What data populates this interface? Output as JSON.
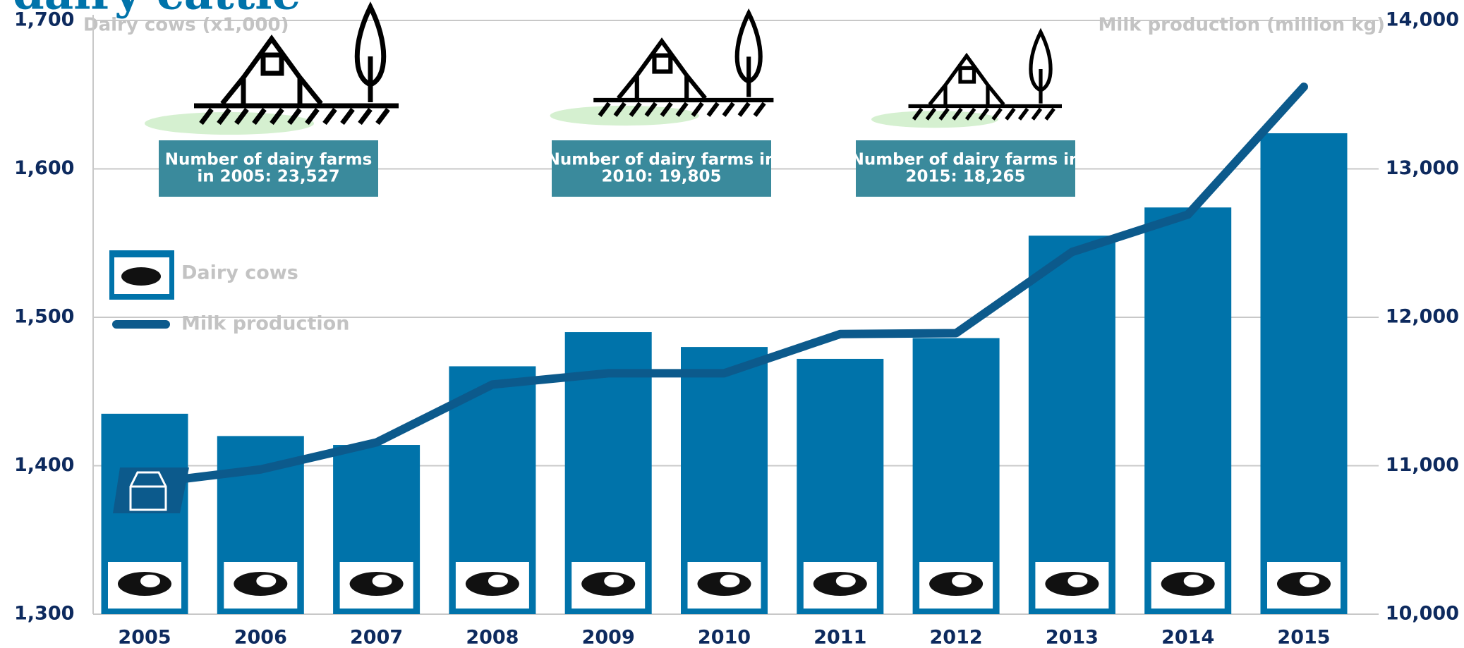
{
  "chart_data": {
    "type": "bar",
    "title": "dairy cattle",
    "y_label": "Dairy cows (x1,000)",
    "y2_label": "Milk production (million kg)",
    "categories": [
      "2005",
      "2006",
      "2007",
      "2008",
      "2009",
      "2010",
      "2011",
      "2012",
      "2013",
      "2014",
      "2015"
    ],
    "series": [
      {
        "name": "Dairy cows",
        "type": "bar",
        "color": "#0073aa",
        "values": [
          1435,
          1420,
          1414,
          1467,
          1490,
          1480,
          1472,
          1486,
          1555,
          1574,
          1624
        ]
      },
      {
        "name": "Milk production",
        "type": "line",
        "axis": "y2",
        "color": "#0c5a8c",
        "values": [
          10880,
          10975,
          11157,
          11547,
          11623,
          11623,
          11887,
          11893,
          12440,
          12692,
          13553
        ]
      }
    ],
    "ylim": [
      1300,
      1700
    ],
    "yticks": [
      {
        "value": 1300,
        "label": "1,300"
      },
      {
        "value": 1400,
        "label": "1,400"
      },
      {
        "value": 1500,
        "label": "1,500"
      },
      {
        "value": 1600,
        "label": "1,600"
      },
      {
        "value": 1700,
        "label": "1,700"
      }
    ],
    "y2lim": [
      10000,
      14000
    ],
    "y2ticks": [
      {
        "value": 10000,
        "label": "10,000"
      },
      {
        "value": 11000,
        "label": "11,000"
      },
      {
        "value": 12000,
        "label": "12,000"
      },
      {
        "value": 13000,
        "label": "13,000"
      },
      {
        "value": 14000,
        "label": "14,000"
      }
    ],
    "grid": true,
    "legend": "upper left",
    "annotations": [
      [
        "Number of dairy farms",
        "in 2005: 23,527"
      ],
      [
        "Number of dairy farms in",
        "2010: 19,805"
      ],
      [
        "Number of dairy farms in",
        "2015: 18,265"
      ]
    ]
  }
}
